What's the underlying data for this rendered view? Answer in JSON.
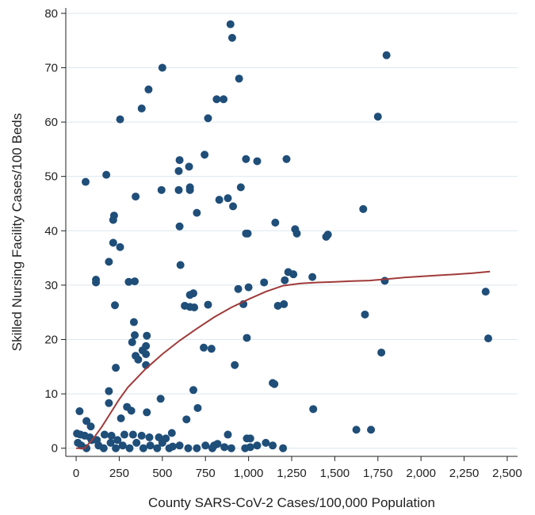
{
  "chart_data": {
    "type": "scatter",
    "xlabel": "County SARS-CoV-2 Cases/100,000 Population",
    "ylabel": "Skilled Nursing Facility Cases/100 Beds",
    "xlim": [
      -60,
      2560
    ],
    "ylim": [
      -1.5,
      81
    ],
    "x_ticks": [
      0,
      250,
      500,
      750,
      1000,
      1250,
      1500,
      1750,
      2000,
      2250,
      2500
    ],
    "x_tick_labels": [
      "0",
      "250",
      "500",
      "750",
      "1,000",
      "1,250",
      "1,500",
      "1,750",
      "2,000",
      "2,250",
      "2,500"
    ],
    "y_ticks": [
      0,
      10,
      20,
      30,
      40,
      50,
      60,
      70,
      80
    ],
    "y_tick_labels": [
      "0",
      "10",
      "20",
      "30",
      "40",
      "50",
      "60",
      "70",
      "80"
    ],
    "grid": "horizontal",
    "point_color": "#1f4e79",
    "line_color": "#a03a3a",
    "points": [
      [
        895,
        78
      ],
      [
        905,
        75.5
      ],
      [
        1800,
        72.3
      ],
      [
        500,
        70
      ],
      [
        945,
        68
      ],
      [
        420,
        66
      ],
      [
        815,
        64.2
      ],
      [
        855,
        64.2
      ],
      [
        380,
        62.5
      ],
      [
        255,
        60.5
      ],
      [
        765,
        60.7
      ],
      [
        1750,
        61
      ],
      [
        745,
        54
      ],
      [
        600,
        53
      ],
      [
        985,
        53.2
      ],
      [
        1050,
        52.8
      ],
      [
        1220,
        53.2
      ],
      [
        595,
        51
      ],
      [
        655,
        51.8
      ],
      [
        175,
        50.3
      ],
      [
        55,
        49
      ],
      [
        595,
        47.5
      ],
      [
        660,
        47.5
      ],
      [
        660,
        48
      ],
      [
        495,
        47.5
      ],
      [
        955,
        48
      ],
      [
        345,
        46.3
      ],
      [
        830,
        45.7
      ],
      [
        880,
        46
      ],
      [
        910,
        44.5
      ],
      [
        700,
        43.3
      ],
      [
        1665,
        44
      ],
      [
        220,
        42.8
      ],
      [
        215,
        42
      ],
      [
        1155,
        41.5
      ],
      [
        600,
        40.8
      ],
      [
        995,
        39.5
      ],
      [
        985,
        39.5
      ],
      [
        1270,
        40.3
      ],
      [
        1280,
        39.5
      ],
      [
        1460,
        39.3
      ],
      [
        1450,
        38.9
      ],
      [
        215,
        37.8
      ],
      [
        255,
        37
      ],
      [
        190,
        34.3
      ],
      [
        605,
        33.7
      ],
      [
        1230,
        32.4
      ],
      [
        1260,
        32
      ],
      [
        1370,
        31.5
      ],
      [
        115,
        31
      ],
      [
        115,
        30.5
      ],
      [
        305,
        30.6
      ],
      [
        340,
        30.7
      ],
      [
        1210,
        30.9
      ],
      [
        1090,
        30.5
      ],
      [
        1790,
        30.8
      ],
      [
        940,
        29.3
      ],
      [
        1000,
        29.6
      ],
      [
        680,
        28.5
      ],
      [
        660,
        28.2
      ],
      [
        660,
        26
      ],
      [
        630,
        26.2
      ],
      [
        685,
        25.9
      ],
      [
        765,
        26.4
      ],
      [
        225,
        26.3
      ],
      [
        970,
        26.5
      ],
      [
        1170,
        26.2
      ],
      [
        1205,
        26.5
      ],
      [
        1675,
        24.6
      ],
      [
        2375,
        28.8
      ],
      [
        335,
        23.2
      ],
      [
        340,
        20.8
      ],
      [
        410,
        20.7
      ],
      [
        405,
        18.8
      ],
      [
        385,
        18
      ],
      [
        405,
        17.3
      ],
      [
        325,
        19.5
      ],
      [
        345,
        17
      ],
      [
        360,
        16.3
      ],
      [
        405,
        15.3
      ],
      [
        230,
        14.8
      ],
      [
        740,
        18.5
      ],
      [
        785,
        18.3
      ],
      [
        990,
        20.3
      ],
      [
        920,
        15.3
      ],
      [
        1770,
        17.6
      ],
      [
        2390,
        20.2
      ],
      [
        1150,
        11.8
      ],
      [
        1140,
        12
      ],
      [
        190,
        10.5
      ],
      [
        680,
        10.7
      ],
      [
        490,
        9.1
      ],
      [
        190,
        8.3
      ],
      [
        295,
        7.6
      ],
      [
        320,
        6.9
      ],
      [
        410,
        6.6
      ],
      [
        260,
        5.5
      ],
      [
        705,
        7.4
      ],
      [
        1375,
        7.2
      ],
      [
        20,
        6.8
      ],
      [
        1625,
        3.4
      ],
      [
        1710,
        3.4
      ],
      [
        60,
        5
      ],
      [
        85,
        4
      ],
      [
        5,
        2.7
      ],
      [
        25,
        2.5
      ],
      [
        50,
        2.3
      ],
      [
        80,
        2
      ],
      [
        120,
        1.5
      ],
      [
        165,
        2.5
      ],
      [
        205,
        2.3
      ],
      [
        240,
        1.5
      ],
      [
        280,
        2.5
      ],
      [
        330,
        2.5
      ],
      [
        380,
        2.3
      ],
      [
        425,
        2
      ],
      [
        480,
        2
      ],
      [
        520,
        1.8
      ],
      [
        555,
        2.8
      ],
      [
        640,
        5.3
      ],
      [
        800,
        0.5
      ],
      [
        880,
        2.5
      ],
      [
        990,
        1.8
      ],
      [
        1010,
        1.8
      ],
      [
        1100,
        1
      ],
      [
        10,
        1
      ],
      [
        30,
        0.5
      ],
      [
        60,
        0
      ],
      [
        90,
        1.5
      ],
      [
        130,
        0.5
      ],
      [
        160,
        0
      ],
      [
        200,
        1
      ],
      [
        230,
        0
      ],
      [
        270,
        0.5
      ],
      [
        310,
        0
      ],
      [
        350,
        1
      ],
      [
        390,
        0
      ],
      [
        430,
        0.5
      ],
      [
        470,
        0
      ],
      [
        500,
        1
      ],
      [
        540,
        0
      ],
      [
        560,
        0.3
      ],
      [
        600,
        0.5
      ],
      [
        650,
        0
      ],
      [
        700,
        0
      ],
      [
        750,
        0.5
      ],
      [
        790,
        0
      ],
      [
        820,
        0.8
      ],
      [
        860,
        0.2
      ],
      [
        900,
        0
      ],
      [
        980,
        0
      ],
      [
        1010,
        0.2
      ],
      [
        1050,
        0.5
      ],
      [
        1140,
        0.5
      ],
      [
        1200,
        0
      ]
    ],
    "trend_line": [
      [
        0,
        0
      ],
      [
        50,
        0
      ],
      [
        100,
        1.8
      ],
      [
        150,
        4
      ],
      [
        200,
        6.5
      ],
      [
        250,
        9
      ],
      [
        300,
        11.2
      ],
      [
        400,
        14.5
      ],
      [
        500,
        17.3
      ],
      [
        600,
        19.8
      ],
      [
        700,
        22
      ],
      [
        800,
        24.1
      ],
      [
        900,
        25.9
      ],
      [
        1000,
        27.4
      ],
      [
        1100,
        28.8
      ],
      [
        1200,
        29.9
      ],
      [
        1300,
        30.3
      ],
      [
        1400,
        30.5
      ],
      [
        1500,
        30.6
      ],
      [
        1600,
        30.75
      ],
      [
        1700,
        30.85
      ],
      [
        1800,
        31.1
      ],
      [
        1900,
        31.4
      ],
      [
        2000,
        31.6
      ],
      [
        2100,
        31.8
      ],
      [
        2200,
        32
      ],
      [
        2300,
        32.2
      ],
      [
        2400,
        32.5
      ]
    ]
  }
}
